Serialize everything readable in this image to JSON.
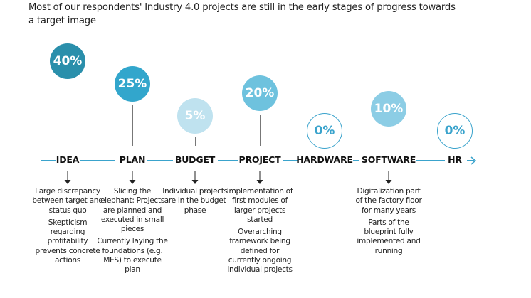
{
  "subtitle": "Most of our respondents' Industry 4.0 projects are still in the early stages of progress towards a target image",
  "stages": [
    {
      "label": "IDEA",
      "percent": "40%",
      "value": 40,
      "color": "#2a8fab",
      "descriptions": [
        "Large discrepancy between target and status quo",
        "Skepticism regarding profitability prevents concrete actions"
      ]
    },
    {
      "label": "PLAN",
      "percent": "25%",
      "value": 25,
      "color": "#32a6cc",
      "descriptions": [
        "Slicing the elephant: Projects are planned and executed in small pieces",
        "Currently laying the foundations (e.g. MES) to execute plan"
      ]
    },
    {
      "label": "BUDGET",
      "percent": "5%",
      "value": 5,
      "color": "#bfe2ef",
      "descriptions": [
        "Individual projects are in the budget phase"
      ]
    },
    {
      "label": "PROJECT",
      "percent": "20%",
      "value": 20,
      "color": "#6ec2de",
      "descriptions": [
        "Implementation of first modules of larger projects started",
        "Overarching framework being defined for currently ongoing individual projects"
      ]
    },
    {
      "label": "HARDWARE",
      "percent": "0%",
      "value": 0,
      "color": "#3aa3cc",
      "descriptions": []
    },
    {
      "label": "SOFTWARE",
      "percent": "10%",
      "value": 10,
      "color": "#8ccde5",
      "descriptions": [
        "Digitalization part of the factory floor for many years",
        "Parts of the blueprint fully implemented and running"
      ]
    },
    {
      "label": "HR",
      "percent": "0%",
      "value": 0,
      "color": "#3aa3cc",
      "descriptions": []
    }
  ],
  "accent_color": "#3aa3cc"
}
